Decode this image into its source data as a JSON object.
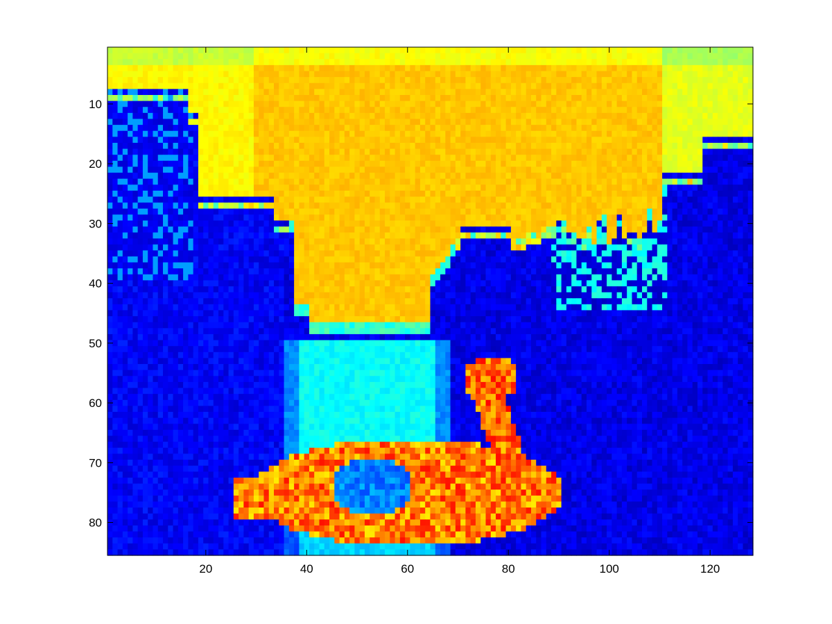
{
  "chart_data": {
    "type": "heatmap",
    "title": "",
    "xlabel": "",
    "ylabel": "",
    "xlim": [
      0.5,
      128.5
    ],
    "ylim": [
      0.5,
      85.5
    ],
    "y_reversed": true,
    "xticks": [
      20,
      40,
      60,
      80,
      100,
      120
    ],
    "yticks": [
      10,
      20,
      30,
      40,
      50,
      60,
      70,
      80
    ],
    "xtick_labels": [
      "20",
      "40",
      "60",
      "80",
      "100",
      "120"
    ],
    "ytick_labels": [
      "10",
      "20",
      "30",
      "40",
      "50",
      "60",
      "70",
      "80"
    ],
    "colormap": "jet",
    "grid": false,
    "image_size": {
      "cols": 128,
      "rows": 85
    },
    "description": "Pseudo-color intensity image of a swan boat on a pond: bright sky (yellow-green) at top, dark trees and buildings (blue) at the sides, light water (cyan) in the center and a bright swan boat (yellow/red) at the bottom.",
    "regions": [
      {
        "name": "sky",
        "value": 0.68
      },
      {
        "name": "left-building",
        "value": 0.12
      },
      {
        "name": "left-trees",
        "value": 0.1
      },
      {
        "name": "right-trees",
        "value": 0.1
      },
      {
        "name": "water",
        "value": 0.38
      },
      {
        "name": "swan-boat",
        "value": 0.75
      },
      {
        "name": "swan-neck",
        "value": 0.77
      },
      {
        "name": "boat-interior",
        "value": 0.25
      }
    ],
    "colors": {
      "axes": "#000000",
      "background": "#ffffff"
    }
  }
}
